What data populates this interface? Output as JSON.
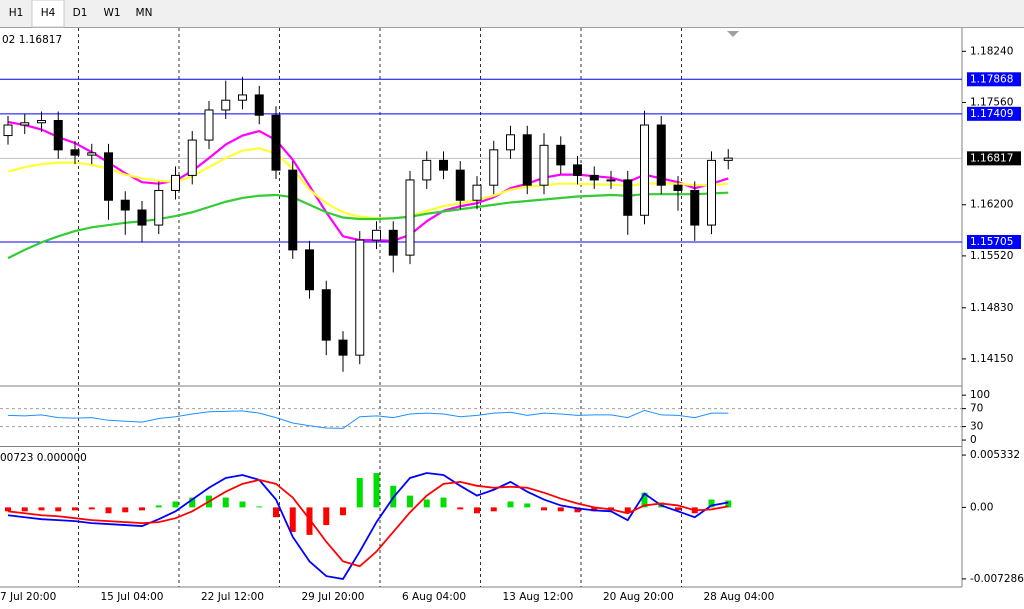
{
  "toolbar": {
    "tabs": [
      "H1",
      "H4",
      "D1",
      "W1",
      "MN"
    ],
    "active_tab": 1
  },
  "chart_data": [
    {
      "type": "candlestick",
      "title": "02 1.16817",
      "grid": true,
      "categories": [
        "7 Jul 20:00",
        null,
        null,
        null,
        null,
        null,
        "15 Jul 04:00",
        null,
        null,
        null,
        null,
        null,
        "22 Jul 12:00",
        null,
        null,
        null,
        null,
        null,
        "29 Jul 20:00",
        null,
        null,
        null,
        null,
        null,
        "6 Aug 04:00",
        null,
        null,
        null,
        null,
        null,
        "13 Aug 12:00",
        null,
        null,
        null,
        null,
        null,
        "20 Aug 20:00",
        null,
        null,
        null,
        null,
        null,
        "28 Aug 04:00",
        null
      ],
      "open": [
        1.1712,
        1.1726,
        1.1729,
        1.1732,
        1.1693,
        1.1686,
        1.1689,
        1.1626,
        1.1613,
        1.1593,
        1.1639,
        1.1659,
        1.1706,
        1.1746,
        1.1759,
        1.1766,
        1.1739,
        1.1666,
        1.156,
        1.1507,
        1.144,
        1.142,
        1.1573,
        1.1586,
        1.1553,
        1.1653,
        1.1679,
        1.1666,
        1.1626,
        1.1646,
        1.1693,
        1.1713,
        1.1646,
        1.1699,
        1.1673,
        1.1659,
        1.1653,
        1.1653,
        1.1606,
        1.1726,
        1.1646,
        1.1639,
        1.1593,
        1.1679
      ],
      "high": [
        1.1738,
        1.1741,
        1.1744,
        1.1744,
        1.1705,
        1.1701,
        1.1701,
        1.1638,
        1.1625,
        1.1651,
        1.1671,
        1.1718,
        1.1758,
        1.1785,
        1.179,
        1.1778,
        1.1751,
        1.1678,
        1.1572,
        1.1519,
        1.1452,
        1.1585,
        1.1598,
        1.1598,
        1.1665,
        1.1691,
        1.1691,
        1.1678,
        1.1658,
        1.1705,
        1.1725,
        1.1725,
        1.1715,
        1.1711,
        1.1685,
        1.1671,
        1.1665,
        1.1665,
        1.1745,
        1.1738,
        1.1658,
        1.1651,
        1.1691,
        1.1694
      ],
      "low": [
        1.17,
        1.1714,
        1.1717,
        1.1681,
        1.1674,
        1.1674,
        1.16,
        1.158,
        1.157,
        1.1581,
        1.1627,
        1.1647,
        1.1694,
        1.1734,
        1.1747,
        1.1727,
        1.1654,
        1.1548,
        1.1495,
        1.142,
        1.1398,
        1.1408,
        1.1561,
        1.153,
        1.1541,
        1.1641,
        1.1654,
        1.1614,
        1.1614,
        1.1634,
        1.1681,
        1.1634,
        1.1634,
        1.1661,
        1.1647,
        1.1641,
        1.1641,
        1.158,
        1.1594,
        1.1634,
        1.1612,
        1.1572,
        1.1581,
        1.1667
      ],
      "close": [
        1.1726,
        1.1729,
        1.1732,
        1.1693,
        1.1686,
        1.1689,
        1.1626,
        1.1613,
        1.1593,
        1.1639,
        1.1659,
        1.1706,
        1.1746,
        1.1759,
        1.1766,
        1.1739,
        1.1666,
        1.156,
        1.1507,
        1.144,
        1.142,
        1.1573,
        1.1586,
        1.1553,
        1.1653,
        1.1679,
        1.1666,
        1.1626,
        1.1646,
        1.1693,
        1.1713,
        1.1646,
        1.1699,
        1.1673,
        1.1659,
        1.1653,
        1.1653,
        1.1606,
        1.1726,
        1.1646,
        1.1639,
        1.1593,
        1.1679,
        1.1682
      ],
      "up_color": "#ffffff",
      "down_color": "#000000",
      "wick_color": "#000000",
      "series": [
        {
          "color": "#ff00ff",
          "values": [
            1.173,
            1.1726,
            1.172,
            1.171,
            1.1702,
            1.169,
            1.1676,
            1.1662,
            1.165,
            1.1648,
            1.1652,
            1.1665,
            1.1682,
            1.17,
            1.1712,
            1.1718,
            1.1706,
            1.168,
            1.1645,
            1.161,
            1.1578,
            1.1573,
            1.1573,
            1.1572,
            1.158,
            1.1598,
            1.1612,
            1.1618,
            1.1622,
            1.163,
            1.1642,
            1.1648,
            1.1656,
            1.166,
            1.166,
            1.1658,
            1.1656,
            1.165,
            1.166,
            1.1655,
            1.165,
            1.1642,
            1.1648,
            1.1655
          ]
        },
        {
          "color": "#ffff33",
          "values": [
            1.1664,
            1.167,
            1.1674,
            1.1676,
            1.1676,
            1.1673,
            1.1668,
            1.166,
            1.1655,
            1.1652,
            1.165,
            1.1658,
            1.167,
            1.1682,
            1.1692,
            1.1695,
            1.1688,
            1.1668,
            1.164,
            1.1622,
            1.161,
            1.1604,
            1.1602,
            1.1602,
            1.1605,
            1.1612,
            1.1618,
            1.1622,
            1.1626,
            1.1632,
            1.164,
            1.1644,
            1.1646,
            1.1648,
            1.1648,
            1.1647,
            1.1647,
            1.1645,
            1.1648,
            1.1648,
            1.1648,
            1.1646,
            1.1646,
            1.1648
          ]
        },
        {
          "color": "#33cc33",
          "values": [
            1.1549,
            1.156,
            1.157,
            1.1578,
            1.1585,
            1.159,
            1.1593,
            1.1596,
            1.1598,
            1.1601,
            1.1605,
            1.161,
            1.1617,
            1.1624,
            1.1629,
            1.1632,
            1.1633,
            1.163,
            1.162,
            1.161,
            1.1603,
            1.1601,
            1.1601,
            1.1602,
            1.1604,
            1.1608,
            1.1611,
            1.1614,
            1.1617,
            1.162,
            1.1623,
            1.1625,
            1.1627,
            1.1629,
            1.1631,
            1.1632,
            1.1633,
            1.1632,
            1.1634,
            1.1634,
            1.1634,
            1.1634,
            1.1635,
            1.1636
          ]
        }
      ],
      "hlines": [
        {
          "value": 1.17868,
          "color": "#0000ff"
        },
        {
          "value": 1.17409,
          "color": "#0000ff"
        },
        {
          "value": 1.15705,
          "color": "#0000ff"
        }
      ],
      "current_price": 1.16817,
      "ylim": [
        1.1379,
        1.1855
      ],
      "yticks": [
        {
          "value": 1.1824,
          "label": "1.18240"
        },
        {
          "value": 1.1756,
          "label": "1.17560"
        },
        {
          "value": 1.162,
          "label": "1.16200"
        },
        {
          "value": 1.1552,
          "label": "1.15520"
        },
        {
          "value": 1.1483,
          "label": "1.14830"
        },
        {
          "value": 1.1415,
          "label": "1.14150"
        }
      ]
    },
    {
      "type": "line",
      "color": "#1e90ff",
      "values": [
        55,
        54,
        56,
        50,
        49,
        50,
        44,
        42,
        40,
        48,
        52,
        58,
        63,
        64,
        65,
        60,
        50,
        38,
        32,
        27,
        26,
        52,
        54,
        50,
        58,
        60,
        58,
        52,
        55,
        60,
        62,
        55,
        60,
        58,
        55,
        56,
        56,
        50,
        66,
        56,
        55,
        50,
        60,
        60
      ],
      "levels": [
        70,
        30
      ],
      "ylim": [
        -11,
        116
      ],
      "yticks": [
        100,
        70,
        30,
        0
      ]
    },
    {
      "type": "macd",
      "title": "00723 0.000000",
      "up_color": "#00dd00",
      "down_color": "#ff0000",
      "values": [
        -0.0004,
        -0.0004,
        -0.0003,
        -0.0004,
        -0.0003,
        -0.0002,
        -0.0006,
        -0.0005,
        -0.0003,
        0.0002,
        0.0006,
        0.001,
        0.0012,
        0.001,
        0.0006,
        0.0001,
        -0.001,
        -0.0025,
        -0.0028,
        -0.0018,
        -0.0008,
        0.003,
        0.0035,
        0.0022,
        0.0012,
        0.0008,
        0.001,
        -0.0002,
        -0.0006,
        -0.0004,
        0.0006,
        0.0004,
        -0.0003,
        -0.0004,
        -0.0005,
        -0.0004,
        -0.0003,
        -0.0005,
        0.0015,
        0.0005,
        -0.0003,
        -0.0006,
        0.0008,
        0.0007
      ],
      "series": [
        {
          "color": "#0000ff",
          "values": [
            -0.0008,
            -0.001,
            -0.0012,
            -0.0013,
            -0.0014,
            -0.0016,
            -0.0017,
            -0.0018,
            -0.0019,
            -0.0012,
            -0.0004,
            0.0008,
            0.002,
            0.003,
            0.0033,
            0.0028,
            0.0008,
            -0.003,
            -0.0055,
            -0.007,
            -0.0073,
            -0.0045,
            -0.0015,
            0.001,
            0.003,
            0.0035,
            0.0033,
            0.0022,
            0.0012,
            0.0018,
            0.0026,
            0.0016,
            0.0008,
            0.0002,
            -0.0001,
            -0.0003,
            -0.0004,
            -0.0013,
            0.0014,
            0.0002,
            -0.0004,
            -0.001,
            0.0002,
            0.0005
          ]
        },
        {
          "color": "#ff0000",
          "values": [
            -0.0004,
            -0.0006,
            -0.0008,
            -0.0009,
            -0.0011,
            -0.0013,
            -0.0014,
            -0.0015,
            -0.0016,
            -0.0015,
            -0.0011,
            -0.0004,
            0.0006,
            0.0016,
            0.0024,
            0.0028,
            0.0024,
            0.001,
            -0.0012,
            -0.0035,
            -0.0055,
            -0.006,
            -0.0045,
            -0.0025,
            -0.0005,
            0.0012,
            0.0024,
            0.0026,
            0.0022,
            0.002,
            0.0021,
            0.002,
            0.0015,
            0.0009,
            0.0004,
            0.0,
            -0.0002,
            -0.0006,
            0.0002,
            0.0004,
            0.0002,
            -0.0003,
            -0.0002,
            0.0001
          ]
        }
      ],
      "ylim": [
        -0.00801,
        0.00595
      ],
      "yticks": [
        0.005332,
        {
          "value": 0,
          "label": "0.00"
        },
        -0.007286
      ]
    }
  ]
}
